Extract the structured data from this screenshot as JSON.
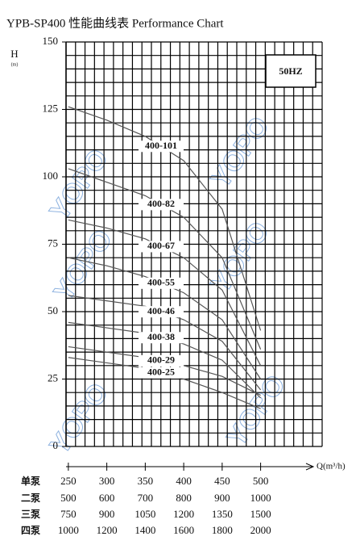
{
  "chart_data": {
    "type": "line",
    "title": "YPB-SP400 性能曲线表 Performance Chart",
    "ylabel": "H",
    "yunit": "(m)",
    "xlabel": "Q(m³/h)",
    "frequency": "50HZ",
    "watermark": "YOPO",
    "xlim": [
      247,
      580
    ],
    "xticks": [
      250,
      300,
      350,
      400,
      450,
      500
    ],
    "ylim": [
      0,
      150
    ],
    "yticks": [
      0,
      25,
      50,
      75,
      100,
      125,
      150
    ],
    "grid": true,
    "row_label": "单泵",
    "flow_rows": [
      {
        "label": "二泵",
        "values": [
          500,
          600,
          700,
          800,
          900,
          1000
        ]
      },
      {
        "label": "三泵",
        "values": [
          750,
          900,
          1050,
          1200,
          1350,
          1500
        ]
      },
      {
        "label": "四泵",
        "values": [
          1000,
          1200,
          1400,
          1600,
          1800,
          2000
        ]
      }
    ],
    "series": [
      {
        "name": "400-101",
        "color": "#555555",
        "x": [
          250,
          300,
          350,
          400,
          450,
          500
        ],
        "values": [
          126,
          121,
          115,
          106,
          88,
          43
        ]
      },
      {
        "name": "400-82",
        "color": "#555555",
        "x": [
          250,
          300,
          350,
          400,
          450,
          500
        ],
        "values": [
          103,
          98,
          93,
          85,
          70,
          36
        ]
      },
      {
        "name": "400-67",
        "color": "#555555",
        "x": [
          250,
          300,
          350,
          400,
          450,
          500
        ],
        "values": [
          84,
          81,
          77,
          70,
          58,
          30
        ]
      },
      {
        "name": "400-55",
        "color": "#555555",
        "x": [
          250,
          300,
          350,
          400,
          450,
          500
        ],
        "values": [
          70,
          67,
          63,
          57,
          47,
          25
        ]
      },
      {
        "name": "400-46",
        "color": "#555555",
        "x": [
          250,
          300,
          350,
          400,
          450,
          500
        ],
        "values": [
          56,
          54,
          52,
          47,
          39,
          21
        ]
      },
      {
        "name": "400-38",
        "color": "#555555",
        "x": [
          250,
          300,
          350,
          400,
          450,
          500
        ],
        "values": [
          46,
          44,
          42,
          38,
          32,
          18
        ]
      },
      {
        "name": "400-29",
        "color": "#555555",
        "x": [
          250,
          300,
          350,
          400,
          450,
          500
        ],
        "values": [
          37,
          35,
          33,
          30,
          26,
          19
        ]
      },
      {
        "name": "400-25",
        "color": "#555555",
        "x": [
          250,
          300,
          350,
          400,
          450,
          500
        ],
        "values": [
          33,
          31,
          29,
          25,
          20,
          14
        ]
      }
    ]
  }
}
